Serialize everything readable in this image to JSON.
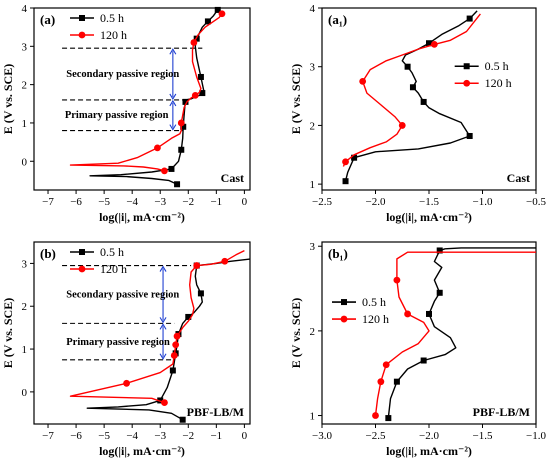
{
  "colors": {
    "black_series": "#000000",
    "red_series": "#ff0000",
    "arrow": "#1f3fd1",
    "axis": "#000000"
  },
  "chart_data": [
    {
      "id": "a",
      "type": "line",
      "panel_label": "(a)",
      "corner_label": "Cast",
      "xlabel": "log(|i|, mA·cm⁻²)",
      "ylabel": "E (V vs. SCE)",
      "xlim": [
        -7.5,
        0.2
      ],
      "ylim": [
        -0.75,
        4
      ],
      "xticks": [
        -7,
        -6,
        -5,
        -4,
        -3,
        -2,
        -1,
        0
      ],
      "yticks": [
        0,
        1,
        2,
        3,
        4
      ],
      "legend_position": "top-left",
      "series": [
        {
          "name": "0.5 h",
          "color": "#000000",
          "marker": "square",
          "x": [
            -2.4,
            -2.7,
            -3.3,
            -4.2,
            -5.5,
            -4.4,
            -3.3,
            -2.6,
            -2.35,
            -2.25,
            -2.2,
            -2.18,
            -2.15,
            -2.12,
            -2.1,
            -2.1,
            -1.9,
            -1.75,
            -1.6,
            -1.5,
            -1.45,
            -1.55,
            -1.7,
            -1.75,
            -1.7,
            -1.6,
            -1.5,
            -1.3,
            -1.1,
            -0.95
          ],
          "y": [
            -0.6,
            -0.5,
            -0.45,
            -0.4,
            -0.38,
            -0.35,
            -0.28,
            -0.2,
            0.0,
            0.3,
            0.6,
            0.9,
            1.2,
            1.45,
            1.55,
            1.6,
            1.63,
            1.68,
            1.72,
            1.78,
            1.85,
            2.2,
            2.7,
            3.0,
            3.2,
            3.35,
            3.5,
            3.65,
            3.8,
            3.95
          ],
          "marker_indices": [
            0,
            7,
            9,
            11,
            14,
            19,
            21,
            24,
            27,
            29
          ]
        },
        {
          "name": "120 h",
          "color": "#ff0000",
          "marker": "circle",
          "x": [
            -2.85,
            -3.1,
            -3.6,
            -4.3,
            -6.2,
            -4.5,
            -3.8,
            -3.1,
            -2.6,
            -2.3,
            -2.25,
            -2.25,
            -2.2,
            -2.15,
            -2.05,
            -1.9,
            -1.75,
            -1.6,
            -1.55,
            -1.7,
            -1.85,
            -1.85,
            -1.8,
            -1.65,
            -1.4,
            -1.1,
            -0.9,
            -0.8
          ],
          "y": [
            -0.25,
            -0.2,
            -0.15,
            -0.12,
            -0.1,
            -0.05,
            0.1,
            0.35,
            0.6,
            0.72,
            0.8,
            1.0,
            1.2,
            1.4,
            1.55,
            1.65,
            1.72,
            1.8,
            1.9,
            2.2,
            2.6,
            2.9,
            3.1,
            3.3,
            3.5,
            3.65,
            3.75,
            3.85
          ],
          "marker_indices": [
            0,
            7,
            11,
            16,
            22,
            27
          ]
        }
      ],
      "dashed_levels": [
        {
          "y": 2.95,
          "x_from": -6.5,
          "x_to": -1.5
        },
        {
          "y": 1.6,
          "x_from": -6.5,
          "x_to": -2.2
        },
        {
          "y": 0.8,
          "x_from": -6.5,
          "x_to": -2.2
        }
      ],
      "arrows": [
        {
          "x": -2.55,
          "y1": 1.6,
          "y2": 2.95
        },
        {
          "x": -2.55,
          "y1": 0.8,
          "y2": 1.6
        }
      ],
      "region_labels": [
        {
          "text": "Secondary passive region",
          "x": -6.35,
          "y": 2.2
        },
        {
          "text": "Primary passive region",
          "x": -6.4,
          "y": 1.13
        }
      ]
    },
    {
      "id": "a1",
      "type": "line",
      "panel_label": "(a₁)",
      "corner_label": "Cast",
      "xlabel": "log(|i|, mA·cm⁻²)",
      "ylabel": "E (V vs. SCE)",
      "xlim": [
        -2.5,
        -0.5
      ],
      "ylim": [
        0.9,
        4
      ],
      "xticks": [
        -2.5,
        -2.0,
        -1.5,
        -1.0,
        -0.5
      ],
      "yticks": [
        1,
        2,
        3,
        4
      ],
      "legend_position": "middle-right",
      "series": [
        {
          "name": "0.5 h",
          "color": "#000000",
          "marker": "square",
          "x": [
            -2.28,
            -2.26,
            -2.2,
            -2.0,
            -1.6,
            -1.3,
            -1.12,
            -1.2,
            -1.4,
            -1.5,
            -1.55,
            -1.6,
            -1.65,
            -1.62,
            -1.66,
            -1.7,
            -1.75,
            -1.72,
            -1.6,
            -1.5,
            -1.38,
            -1.22,
            -1.12,
            -1.05
          ],
          "y": [
            1.05,
            1.2,
            1.45,
            1.55,
            1.6,
            1.7,
            1.82,
            2.05,
            2.2,
            2.3,
            2.4,
            2.55,
            2.65,
            2.75,
            2.9,
            3.0,
            3.1,
            3.2,
            3.3,
            3.4,
            3.55,
            3.7,
            3.82,
            3.95
          ],
          "marker_indices": [
            0,
            2,
            6,
            10,
            12,
            15,
            19,
            22
          ]
        },
        {
          "name": "120 h",
          "color": "#ff0000",
          "marker": "circle",
          "x": [
            -2.3,
            -2.28,
            -2.2,
            -2.05,
            -1.9,
            -1.8,
            -1.75,
            -1.82,
            -1.95,
            -2.08,
            -2.12,
            -2.05,
            -1.9,
            -1.75,
            -1.6,
            -1.45,
            -1.3,
            -1.15,
            -1.02
          ],
          "y": [
            1.3,
            1.38,
            1.5,
            1.62,
            1.72,
            1.85,
            2.0,
            2.15,
            2.35,
            2.55,
            2.75,
            2.95,
            3.1,
            3.2,
            3.3,
            3.38,
            3.45,
            3.6,
            3.9
          ],
          "marker_indices": [
            1,
            6,
            10,
            15
          ]
        }
      ]
    },
    {
      "id": "b",
      "type": "line",
      "panel_label": "(b)",
      "corner_label": "PBF-LB/M",
      "xlabel": "log(|i|, mA·cm⁻²)",
      "ylabel": "E (V vs. SCE)",
      "xlim": [
        -7.5,
        0.2
      ],
      "ylim": [
        -0.75,
        3.5
      ],
      "xticks": [
        -7,
        -6,
        -5,
        -4,
        -3,
        -2,
        -1,
        0
      ],
      "yticks": [
        0,
        1,
        2,
        3
      ],
      "legend_position": "top-left",
      "series": [
        {
          "name": "0.5 h",
          "color": "#000000",
          "marker": "square",
          "x": [
            -2.2,
            -2.6,
            -3.4,
            -5.6,
            -4.5,
            -3.5,
            -3.0,
            -2.75,
            -2.55,
            -2.5,
            -2.45,
            -2.4,
            -2.35,
            -2.2,
            -2.0,
            -1.8,
            -1.6,
            -1.5,
            -1.55,
            -1.7,
            -1.75,
            -1.7,
            -1.4,
            -1.0,
            -0.5,
            0.2
          ],
          "y": [
            -0.65,
            -0.5,
            -0.42,
            -0.38,
            -0.35,
            -0.3,
            -0.2,
            0.1,
            0.5,
            0.7,
            0.9,
            1.1,
            1.35,
            1.6,
            1.75,
            1.85,
            2.0,
            2.1,
            2.3,
            2.5,
            2.7,
            2.95,
            2.97,
            3.0,
            3.05,
            3.1
          ],
          "marker_indices": [
            0,
            6,
            8,
            10,
            12,
            14,
            18,
            21
          ]
        },
        {
          "name": "120 h",
          "color": "#ff0000",
          "marker": "circle",
          "x": [
            -2.85,
            -3.3,
            -6.2,
            -4.2,
            -3.0,
            -2.55,
            -2.5,
            -2.45,
            -2.4,
            -2.2,
            -2.0,
            -1.85,
            -1.8,
            -1.9,
            -1.95,
            -1.9,
            -1.7,
            -1.2,
            -0.7,
            -0.3,
            0.0
          ],
          "y": [
            -0.25,
            -0.15,
            -0.1,
            0.2,
            0.45,
            0.65,
            0.85,
            1.1,
            1.3,
            1.5,
            1.65,
            1.8,
            1.95,
            2.2,
            2.5,
            2.8,
            2.95,
            2.98,
            3.05,
            3.2,
            3.3
          ],
          "marker_indices": [
            0,
            3,
            6,
            7,
            8,
            16,
            18
          ]
        }
      ],
      "dashed_levels": [
        {
          "y": 2.95,
          "x_from": -6.5,
          "x_to": -1.9
        },
        {
          "y": 1.6,
          "x_from": -6.5,
          "x_to": -2.5
        },
        {
          "y": 0.75,
          "x_from": -6.5,
          "x_to": -2.6
        }
      ],
      "arrows": [
        {
          "x": -2.9,
          "y1": 1.6,
          "y2": 2.95
        },
        {
          "x": -2.9,
          "y1": 0.75,
          "y2": 1.6
        }
      ],
      "region_labels": [
        {
          "text": "Secondary passive region",
          "x": -6.35,
          "y": 2.2
        },
        {
          "text": "Primary passive region",
          "x": -6.35,
          "y": 1.1
        }
      ]
    },
    {
      "id": "b1",
      "type": "line",
      "panel_label": "(b₁)",
      "corner_label": "PBF-LB/M",
      "xlabel": "log(|i|, mA·cm⁻²)",
      "ylabel": "E (V vs. SCE)",
      "xlim": [
        -3.0,
        -1.0
      ],
      "ylim": [
        0.9,
        3.05
      ],
      "xticks": [
        -3.0,
        -2.5,
        -2.0,
        -1.5,
        -1.0
      ],
      "yticks": [
        1,
        2,
        3
      ],
      "legend_position": "middle-left",
      "series": [
        {
          "name": "0.5 h",
          "color": "#000000",
          "marker": "square",
          "x": [
            -2.38,
            -2.36,
            -2.3,
            -2.2,
            -2.05,
            -1.85,
            -1.75,
            -1.8,
            -1.95,
            -2.0,
            -1.95,
            -1.9,
            -1.95,
            -1.88,
            -1.95,
            -1.9,
            -1.85,
            -1.7,
            -1.0
          ],
          "y": [
            0.97,
            1.2,
            1.4,
            1.55,
            1.65,
            1.72,
            1.8,
            1.92,
            2.05,
            2.2,
            2.35,
            2.45,
            2.6,
            2.75,
            2.82,
            2.95,
            2.97,
            2.98,
            2.98
          ],
          "marker_indices": [
            0,
            2,
            4,
            9,
            11,
            15
          ]
        },
        {
          "name": "120 h",
          "color": "#ff0000",
          "marker": "circle",
          "x": [
            -2.5,
            -2.48,
            -2.45,
            -2.4,
            -2.25,
            -2.1,
            -2.0,
            -2.05,
            -2.2,
            -2.28,
            -2.3,
            -2.3,
            -2.2,
            -1.0
          ],
          "y": [
            1.0,
            1.2,
            1.4,
            1.6,
            1.75,
            1.85,
            2.0,
            2.1,
            2.2,
            2.4,
            2.6,
            2.85,
            2.93,
            2.93
          ],
          "marker_indices": [
            0,
            2,
            3,
            8,
            10
          ]
        }
      ]
    }
  ]
}
